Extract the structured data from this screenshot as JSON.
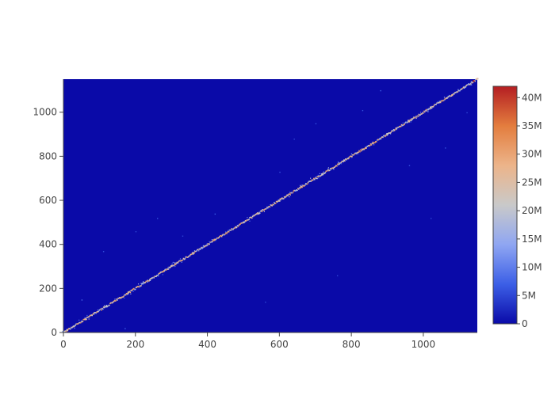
{
  "chart_data": {
    "type": "heatmap",
    "title": "",
    "xlabel": "",
    "ylabel": "",
    "xlim": [
      0,
      1150
    ],
    "ylim": [
      0,
      1150
    ],
    "x_ticks": [
      0,
      200,
      400,
      600,
      800,
      1000
    ],
    "y_ticks": [
      0,
      200,
      400,
      600,
      800,
      1000
    ],
    "zlim": [
      0,
      42000000
    ],
    "colorbar": {
      "ticks": [
        {
          "value": 0,
          "label": "0"
        },
        {
          "value": 5000000,
          "label": "5M"
        },
        {
          "value": 10000000,
          "label": "10M"
        },
        {
          "value": 15000000,
          "label": "15M"
        },
        {
          "value": 20000000,
          "label": "20M"
        },
        {
          "value": 25000000,
          "label": "25M"
        },
        {
          "value": 30000000,
          "label": "30M"
        },
        {
          "value": 35000000,
          "label": "35M"
        },
        {
          "value": 40000000,
          "label": "40M"
        }
      ],
      "colorscale": [
        "#0a0aa8",
        "#3c5fe6",
        "#8fa6f2",
        "#c9c9c9",
        "#ecb48a",
        "#e37d3e",
        "#b41e22"
      ]
    },
    "background_value": 0,
    "background_color": "#0a0aa8",
    "pattern": "diagonal (x≈y) band of high values from (0,0) to (1150,1150), with sparse off-diagonal points",
    "diagonal_points": [
      {
        "x": 10,
        "y": 12,
        "z": 22000000
      },
      {
        "x": 60,
        "y": 60,
        "z": 28000000
      },
      {
        "x": 120,
        "y": 118,
        "z": 20000000
      },
      {
        "x": 180,
        "y": 182,
        "z": 26000000
      },
      {
        "x": 240,
        "y": 238,
        "z": 18000000
      },
      {
        "x": 300,
        "y": 302,
        "z": 24000000
      },
      {
        "x": 360,
        "y": 358,
        "z": 21000000
      },
      {
        "x": 420,
        "y": 422,
        "z": 30000000
      },
      {
        "x": 480,
        "y": 478,
        "z": 19000000
      },
      {
        "x": 540,
        "y": 542,
        "z": 25000000
      },
      {
        "x": 600,
        "y": 598,
        "z": 22000000
      },
      {
        "x": 660,
        "y": 662,
        "z": 27000000
      },
      {
        "x": 720,
        "y": 718,
        "z": 20000000
      },
      {
        "x": 780,
        "y": 782,
        "z": 24000000
      },
      {
        "x": 840,
        "y": 838,
        "z": 29000000
      },
      {
        "x": 900,
        "y": 902,
        "z": 21000000
      },
      {
        "x": 960,
        "y": 958,
        "z": 26000000
      },
      {
        "x": 1020,
        "y": 1022,
        "z": 23000000
      },
      {
        "x": 1080,
        "y": 1078,
        "z": 28000000
      },
      {
        "x": 1140,
        "y": 1142,
        "z": 42000000
      }
    ],
    "off_diagonal_points": [
      {
        "x": 50,
        "y": 150,
        "z": 8000000
      },
      {
        "x": 110,
        "y": 370,
        "z": 6000000
      },
      {
        "x": 170,
        "y": 20,
        "z": 7000000
      },
      {
        "x": 200,
        "y": 460,
        "z": 5000000
      },
      {
        "x": 260,
        "y": 520,
        "z": 6000000
      },
      {
        "x": 330,
        "y": 440,
        "z": 5000000
      },
      {
        "x": 420,
        "y": 540,
        "z": 7000000
      },
      {
        "x": 560,
        "y": 140,
        "z": 5000000
      },
      {
        "x": 600,
        "y": 730,
        "z": 6000000
      },
      {
        "x": 640,
        "y": 880,
        "z": 5000000
      },
      {
        "x": 700,
        "y": 950,
        "z": 6000000
      },
      {
        "x": 760,
        "y": 260,
        "z": 5000000
      },
      {
        "x": 830,
        "y": 1010,
        "z": 6000000
      },
      {
        "x": 880,
        "y": 1100,
        "z": 7000000
      },
      {
        "x": 960,
        "y": 760,
        "z": 6000000
      },
      {
        "x": 1020,
        "y": 520,
        "z": 5000000
      },
      {
        "x": 1060,
        "y": 840,
        "z": 6000000
      },
      {
        "x": 1120,
        "y": 1000,
        "z": 5000000
      }
    ]
  }
}
